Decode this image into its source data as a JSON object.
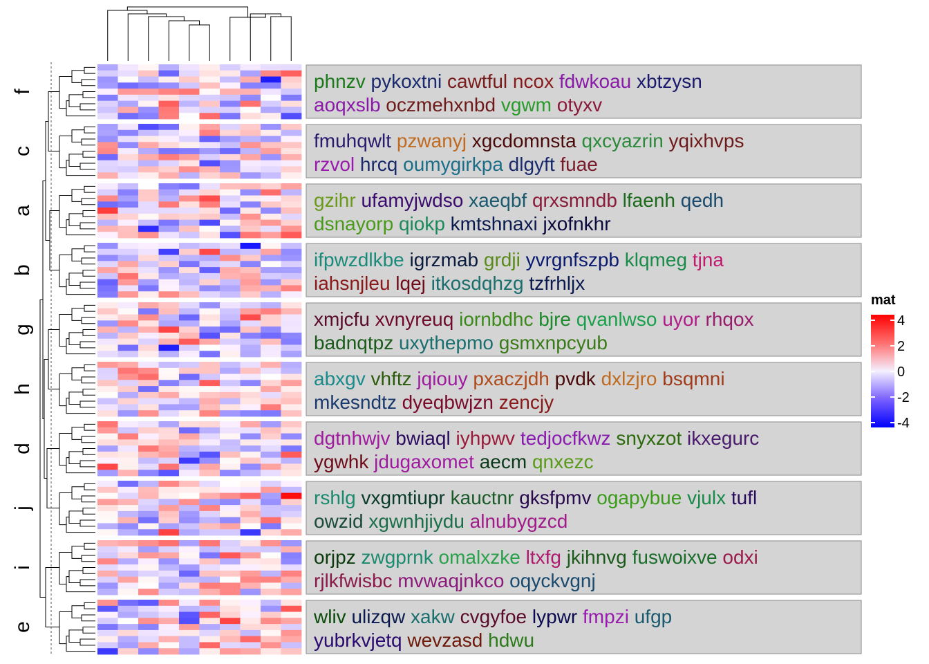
{
  "chart_data": {
    "type": "heatmap",
    "color_scale": {
      "title": "mat",
      "breaks": [
        4,
        2,
        0,
        -2,
        -4
      ],
      "colors": {
        "high": "#ff0000",
        "mid": "#ffffff",
        "low": "#0000ff"
      }
    },
    "columns": 10,
    "slices": [
      {
        "label": "f",
        "rows": 9,
        "words": [
          [
            [
              "phnzv",
              "#1a7a1a"
            ],
            [
              "pykoxtni",
              "#1a2a6e"
            ],
            [
              "cawtful",
              "#7a1a1a"
            ],
            [
              "ncox",
              "#8a1a1a"
            ],
            [
              "fdwkoau",
              "#8a1aa8"
            ],
            [
              "xbtzysn",
              "#1a1a6e"
            ]
          ],
          [
            [
              "aoqxslb",
              "#8a1aa8"
            ],
            [
              "oczmehxnbd",
              "#6e1a1a"
            ],
            [
              "vgwm",
              "#2a9a2a"
            ],
            [
              "otyxv",
              "#8a1a3a"
            ]
          ]
        ]
      },
      {
        "label": "c",
        "rows": 9,
        "words": [
          [
            [
              "fmuhqwlt",
              "#2a1a6e"
            ],
            [
              "pzwanyj",
              "#c06a20"
            ],
            [
              "xgcdomnsta",
              "#4a0a0a"
            ],
            [
              "qxcyazrin",
              "#2a8a3a"
            ],
            [
              "yqixhvps",
              "#6e1a1a"
            ]
          ],
          [
            [
              "rzvol",
              "#9a1ab0"
            ],
            [
              "hrcq",
              "#1a2a6e"
            ],
            [
              "oumygirkpa",
              "#1a6e8a"
            ],
            [
              "dlgyft",
              "#1a2a6e"
            ],
            [
              "fuae",
              "#7a1a2a"
            ]
          ]
        ]
      },
      {
        "label": "a",
        "rows": 9,
        "words": [
          [
            [
              "gzihr",
              "#6a9a1a"
            ],
            [
              "ufamyjwdso",
              "#3a0a6e"
            ],
            [
              "xaeqbf",
              "#1a5a6e"
            ],
            [
              "qrxsmndb",
              "#8a1a3a"
            ],
            [
              "lfaenh",
              "#1a6a1a"
            ],
            [
              "qedh",
              "#1a4a6e"
            ]
          ],
          [
            [
              "dsnayorp",
              "#4a9a1a"
            ],
            [
              "qiokp",
              "#1a8a5a"
            ],
            [
              "kmtshnaxi",
              "#0a1a4e"
            ],
            [
              "jxofnkhr",
              "#0a0a3e"
            ]
          ]
        ]
      },
      {
        "label": "b",
        "rows": 9,
        "words": [
          [
            [
              "ifpwzdlkbe",
              "#1a8a7a"
            ],
            [
              "igrzmab",
              "#0a1a3e"
            ],
            [
              "grdji",
              "#5a8a1a"
            ],
            [
              "yvrgnfszpb",
              "#0a1a6e"
            ],
            [
              "klqmeg",
              "#1a8a4a"
            ],
            [
              "tjna",
              "#c01a6e"
            ]
          ],
          [
            [
              "iahsnjleu",
              "#8a1a1a"
            ],
            [
              "lqej",
              "#6e0a1a"
            ],
            [
              "itkosdqhzg",
              "#1a6e6e"
            ],
            [
              "tzfrhljx",
              "#0a1a4e"
            ]
          ]
        ]
      },
      {
        "label": "g",
        "rows": 9,
        "words": [
          [
            [
              "xmjcfu",
              "#5a0a2a"
            ],
            [
              "xvnyreuq",
              "#6e0a2a"
            ],
            [
              "iornbdhc",
              "#3a8a1a"
            ],
            [
              "bjre",
              "#1a8a2a"
            ],
            [
              "qvanlwso",
              "#1aa04a"
            ],
            [
              "uyor",
              "#b01a8a"
            ],
            [
              "rhqox",
              "#9a1a6e"
            ]
          ],
          [
            [
              "badnqtpz",
              "#1a5a1a"
            ],
            [
              "uxythepmo",
              "#1a6e6e"
            ],
            [
              "gsmxnpcyub",
              "#3a7a1a"
            ]
          ]
        ]
      },
      {
        "label": "h",
        "rows": 9,
        "words": [
          [
            [
              "abxgv",
              "#1a8a8a"
            ],
            [
              "vhftz",
              "#2a5a0a"
            ],
            [
              "jqiouy",
              "#a01aa0"
            ],
            [
              "pxaczjdh",
              "#b04a1a"
            ],
            [
              "pvdk",
              "#4a0a0a"
            ],
            [
              "dxlzjro",
              "#c06a20"
            ],
            [
              "bsqmni",
              "#a03a1a"
            ]
          ],
          [
            [
              "mkesndtz",
              "#1a3a6e"
            ],
            [
              "dyeqbwjzn",
              "#7a0a2a"
            ],
            [
              "zencjy",
              "#8a1a1a"
            ]
          ]
        ]
      },
      {
        "label": "d",
        "rows": 9,
        "words": [
          [
            [
              "dgtnhwjv",
              "#a01aa0"
            ],
            [
              "bwiaql",
              "#2a0a5e"
            ],
            [
              "iyhpwv",
              "#9a1a3a"
            ],
            [
              "tedjocfkwz",
              "#8a1ab0"
            ],
            [
              "snyxzot",
              "#2a6a0a"
            ],
            [
              "ikxegurc",
              "#4a1a6e"
            ]
          ],
          [
            [
              "ygwhk",
              "#6e0a1a"
            ],
            [
              "jdugaxomet",
              "#a01aa0"
            ],
            [
              "aecm",
              "#0a3a1a"
            ],
            [
              "qnxezc",
              "#5a9a1a"
            ]
          ]
        ]
      },
      {
        "label": "j",
        "rows": 9,
        "words": [
          [
            [
              "rshlg",
              "#1a8a6e"
            ],
            [
              "vxgmtiupr",
              "#0a3a2a"
            ],
            [
              "kauctnr",
              "#1a5a2a"
            ],
            [
              "gksfpmv",
              "#2a0a4e"
            ],
            [
              "ogapybue",
              "#3a9a1a"
            ],
            [
              "vjulx",
              "#1a8a4a"
            ],
            [
              "tufl",
              "#2a0a5e"
            ]
          ],
          [
            [
              "owzid",
              "#1a4a3a"
            ],
            [
              "xgwnhjiydu",
              "#1a6e4a"
            ],
            [
              "alnubygzcd",
              "#a01a8a"
            ]
          ]
        ]
      },
      {
        "label": "i",
        "rows": 9,
        "words": [
          [
            [
              "orjpz",
              "#0a3a0a"
            ],
            [
              "zwgprnk",
              "#1a8a6e"
            ],
            [
              "omalxzke",
              "#2aa04a"
            ],
            [
              "ltxfg",
              "#b01a6e"
            ],
            [
              "jkihnvg",
              "#1a5a1a"
            ],
            [
              "fuswoixve",
              "#1a6e2a"
            ],
            [
              "odxi",
              "#9a1a4a"
            ]
          ],
          [
            [
              "rjlkfwisbc",
              "#8a1a4a"
            ],
            [
              "mvwaqjnkco",
              "#8a1a7a"
            ],
            [
              "oqyckvgnj",
              "#1a4a6e"
            ]
          ]
        ]
      },
      {
        "label": "e",
        "rows": 9,
        "words": [
          [
            [
              "wliv",
              "#0a4a0a"
            ],
            [
              "ulizqw",
              "#0a1a4e"
            ],
            [
              "xakw",
              "#1a6e6e"
            ],
            [
              "cvgyfoe",
              "#5a0a2a"
            ],
            [
              "lypwr",
              "#0a0a4e"
            ],
            [
              "fmpzi",
              "#9a1ab0"
            ],
            [
              "ufgp",
              "#1a5a6e"
            ]
          ],
          [
            [
              "yubrkvjetq",
              "#2a0a6e"
            ],
            [
              "wevzasd",
              "#6e1a0a"
            ],
            [
              "hdwu",
              "#2a7a1a"
            ]
          ]
        ]
      }
    ]
  }
}
